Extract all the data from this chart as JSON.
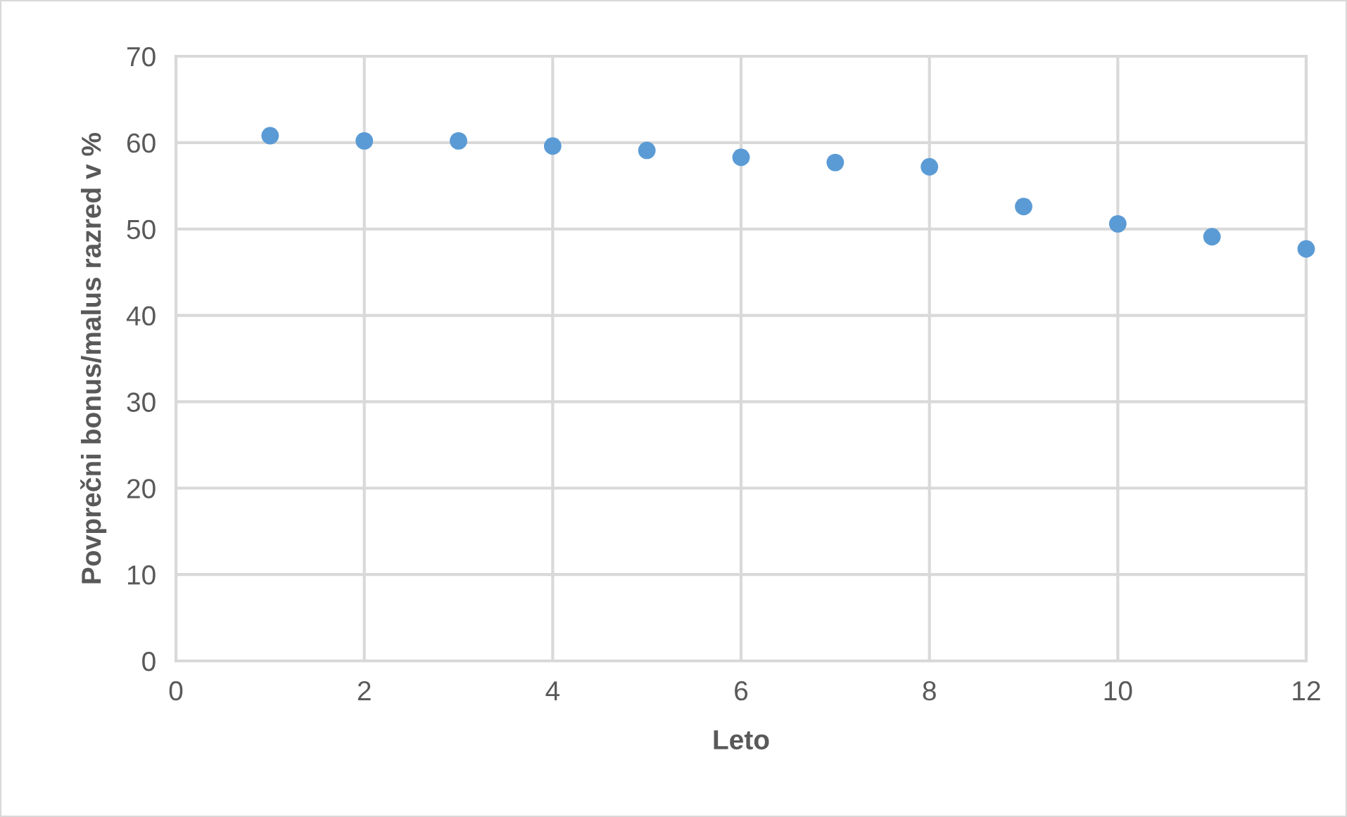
{
  "chart_data": {
    "type": "scatter",
    "xlabel": "Leto",
    "ylabel": "Povprečni bonus/malus razred v %",
    "x": [
      1,
      2,
      3,
      4,
      5,
      6,
      7,
      8,
      9,
      10,
      11,
      12
    ],
    "values": [
      60.8,
      60.2,
      60.2,
      59.6,
      59.1,
      58.3,
      57.7,
      57.2,
      52.6,
      50.6,
      49.1,
      47.7
    ],
    "color": "#5b9bd5",
    "marker": "circle",
    "xlim": [
      0,
      12
    ],
    "xticks": [
      0,
      2,
      4,
      6,
      8,
      10,
      12
    ],
    "ylim": [
      0,
      70
    ],
    "yticks": [
      0,
      10,
      20,
      30,
      40,
      50,
      60,
      70
    ],
    "grid": true
  }
}
